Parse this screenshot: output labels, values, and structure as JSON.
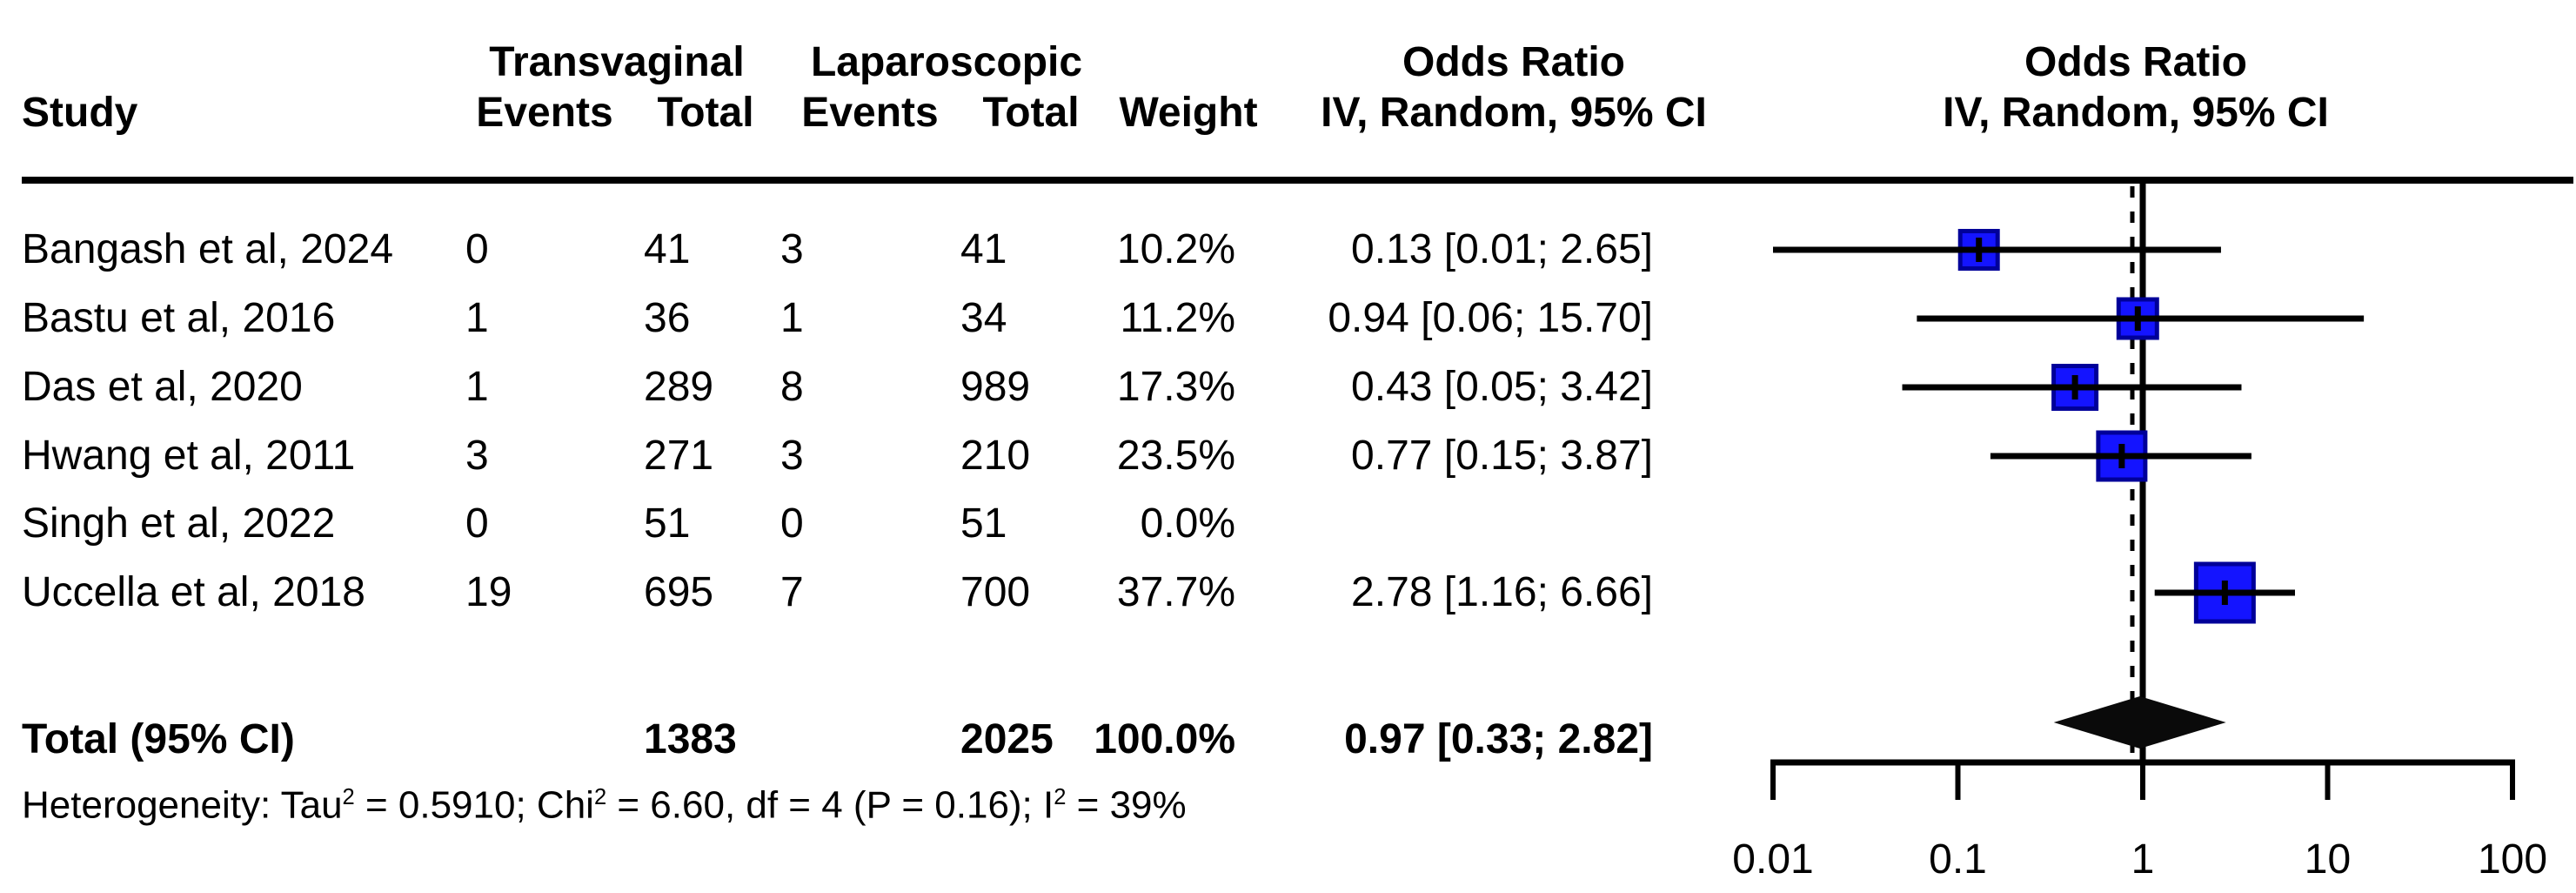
{
  "header": {
    "study": "Study",
    "group_experimental": "Transvaginal",
    "group_control": "Laparoscopic",
    "events_exp": "Events",
    "total_exp": "Total",
    "events_ctl": "Events",
    "total_ctl": "Total",
    "weight": "Weight",
    "effect_title": "Odds Ratio",
    "effect_subtitle": "IV, Random, 95% CI",
    "plot_title": "Odds Ratio",
    "plot_subtitle": "IV, Random, 95% CI"
  },
  "chart_data": {
    "type": "forest",
    "effect_measure": "Odds Ratio",
    "model": "IV, Random, 95% CI",
    "x_scale": "log10",
    "axis_ticks": [
      0.01,
      0.1,
      1,
      10,
      100
    ],
    "axis_tick_labels": [
      "0.01",
      "0.1",
      "1",
      "10",
      "100"
    ],
    "null_value": 1,
    "studies": [
      {
        "study": "Bangash et al, 2024",
        "events_exp": "0",
        "total_exp": "41",
        "events_ctl": "3",
        "total_ctl": "41",
        "weight_label": "10.2%",
        "or_label": "0.13 [0.01; 2.65]",
        "or": 0.13,
        "ci_low": 0.01,
        "ci_high": 2.65,
        "weight": 10.2
      },
      {
        "study": "Bastu et al, 2016",
        "events_exp": "1",
        "total_exp": "36",
        "events_ctl": "1",
        "total_ctl": "34",
        "weight_label": "11.2%",
        "or_label": "0.94 [0.06; 15.70]",
        "or": 0.94,
        "ci_low": 0.06,
        "ci_high": 15.7,
        "weight": 11.2
      },
      {
        "study": "Das et al, 2020",
        "events_exp": "1",
        "total_exp": "289",
        "events_ctl": "8",
        "total_ctl": "989",
        "weight_label": "17.3%",
        "or_label": "0.43 [0.05; 3.42]",
        "or": 0.43,
        "ci_low": 0.05,
        "ci_high": 3.42,
        "weight": 17.3
      },
      {
        "study": "Hwang et al, 2011",
        "events_exp": "3",
        "total_exp": "271",
        "events_ctl": "3",
        "total_ctl": "210",
        "weight_label": "23.5%",
        "or_label": "0.77 [0.15; 3.87]",
        "or": 0.77,
        "ci_low": 0.15,
        "ci_high": 3.87,
        "weight": 23.5
      },
      {
        "study": "Singh et al, 2022",
        "events_exp": "0",
        "total_exp": "51",
        "events_ctl": "0",
        "total_ctl": "51",
        "weight_label": "0.0%",
        "or_label": "",
        "or": null,
        "ci_low": null,
        "ci_high": null,
        "weight": 0.0
      },
      {
        "study": "Uccella et al, 2018",
        "events_exp": "19",
        "total_exp": "695",
        "events_ctl": "7",
        "total_ctl": "700",
        "weight_label": "37.7%",
        "or_label": "2.78 [1.16; 6.66]",
        "or": 2.78,
        "ci_low": 1.16,
        "ci_high": 6.66,
        "weight": 37.7
      }
    ],
    "total": {
      "label": "Total (95% CI)",
      "total_exp": "1383",
      "total_ctl": "2025",
      "weight_label": "100.0%",
      "or_label": "0.97 [0.33; 2.82]",
      "or": 0.97,
      "ci_low": 0.33,
      "ci_high": 2.82
    },
    "heterogeneity_parts": [
      {
        "text": "Heterogeneity: Tau"
      },
      {
        "sup": "2"
      },
      {
        "text": " = 0.5910; Chi"
      },
      {
        "sup": "2"
      },
      {
        "text": " = 6.60, df = 4 (P = 0.16); I"
      },
      {
        "sup": "2"
      },
      {
        "text": " = 39%"
      }
    ],
    "colors": {
      "square_fill": "#1414FF",
      "square_border": "#000099",
      "line": "#000000",
      "diamond": "#0a0a0a",
      "text": "#000000"
    }
  }
}
